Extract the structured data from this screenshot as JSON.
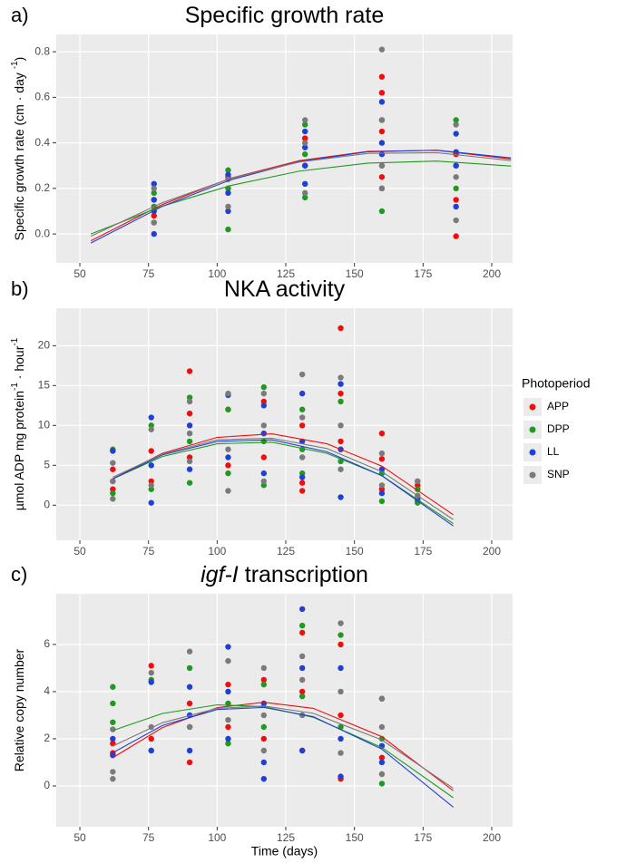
{
  "chart_data": [
    {
      "type": "scatter",
      "label": "a)",
      "title": "Specific growth rate",
      "ylabel": [
        "Specific growth rate (cm · day ",
        "-1",
        ")"
      ],
      "xlim": [
        41.4,
        207.6
      ],
      "ylim": [
        -0.127,
        0.876
      ],
      "xticks": [
        50,
        75,
        100,
        125,
        150,
        175,
        200
      ],
      "yticks": [
        {
          "value": 0,
          "label": "0.0"
        },
        0.2,
        0.4,
        0.6,
        0.8
      ],
      "grid": true,
      "series": [
        {
          "name": "APP",
          "color": "#f20d0d",
          "x": [
            77,
            77,
            104,
            104,
            132,
            132,
            160,
            160,
            160,
            160,
            187,
            187,
            187
          ],
          "values": [
            0.08,
            0.15,
            0.2,
            0.25,
            0.3,
            0.42,
            0.69,
            0.62,
            0.45,
            0.25,
            -0.01,
            0.15,
            0.35
          ],
          "trend": {
            "x": [
              54,
              80,
              105,
              130,
              155,
              180,
              207
            ],
            "values": [
              -0.03,
              0.129,
              0.245,
              0.322,
              0.363,
              0.367,
              0.329
            ]
          }
        },
        {
          "name": "DPP",
          "color": "#1e9a1e",
          "x": [
            77,
            77,
            77,
            104,
            104,
            104,
            132,
            132,
            132,
            160,
            160,
            160,
            187,
            187,
            187
          ],
          "values": [
            0.05,
            0.18,
            0.12,
            0.02,
            0.28,
            0.2,
            0.16,
            0.48,
            0.35,
            0.1,
            0.5,
            0.3,
            0.5,
            0.2,
            0.3
          ],
          "trend": {
            "x": [
              54,
              80,
              105,
              130,
              155,
              180,
              207
            ],
            "values": [
              0,
              0.122,
              0.213,
              0.276,
              0.311,
              0.32,
              0.298
            ]
          }
        },
        {
          "name": "LL",
          "color": "#1f3fd6",
          "x": [
            77,
            77,
            77,
            77,
            104,
            104,
            104,
            132,
            132,
            132,
            132,
            160,
            160,
            160,
            160,
            187,
            187,
            187,
            187
          ],
          "values": [
            0,
            0.22,
            0.1,
            0.15,
            0.1,
            0.26,
            0.18,
            0.22,
            0.45,
            0.3,
            0.38,
            0.2,
            0.58,
            0.4,
            0.35,
            0.12,
            0.44,
            0.3,
            0.36
          ],
          "trend": {
            "x": [
              54,
              80,
              105,
              130,
              155,
              180,
              207
            ],
            "values": [
              -0.04,
              0.121,
              0.238,
              0.318,
              0.361,
              0.368,
              0.334
            ]
          }
        },
        {
          "name": "SNP",
          "color": "#7a7a7a",
          "x": [
            77,
            77,
            104,
            104,
            132,
            132,
            132,
            160,
            160,
            160,
            160,
            187,
            187,
            187
          ],
          "values": [
            0.05,
            0.2,
            0.12,
            0.24,
            0.18,
            0.5,
            0.4,
            0.81,
            0.2,
            0.5,
            0.3,
            0.06,
            0.48,
            0.25
          ],
          "trend": {
            "x": [
              54,
              80,
              105,
              130,
              155,
              180,
              207
            ],
            "values": [
              -0.01,
              0.137,
              0.244,
              0.316,
              0.354,
              0.357,
              0.322
            ]
          }
        }
      ]
    },
    {
      "type": "scatter",
      "label": "b)",
      "title": "NKA activity",
      "ylabel": [
        "µmol ADP  mg protein",
        "-1",
        " · hour",
        "-1"
      ],
      "xlim": [
        41.4,
        207.6
      ],
      "ylim": [
        -4.4,
        24.7
      ],
      "xticks": [
        50,
        75,
        100,
        125,
        150,
        175,
        200
      ],
      "yticks": [
        0,
        5,
        10,
        15,
        20
      ],
      "grid": true,
      "series": [
        {
          "name": "APP",
          "color": "#f20d0d",
          "x": [
            62,
            62,
            76,
            76,
            90,
            90,
            90,
            104,
            104,
            117,
            117,
            131,
            131,
            131,
            145,
            145,
            145,
            160,
            160,
            160,
            173,
            173
          ],
          "values": [
            4.5,
            2,
            6.8,
            3,
            16.8,
            11.5,
            6,
            12,
            5,
            13,
            6,
            2.8,
            1.8,
            10,
            22.2,
            14,
            8,
            9,
            5.8,
            2,
            2.5,
            0.5
          ],
          "trend": {
            "x": [
              62,
              80,
              100,
              120,
              140,
              160,
              186
            ],
            "values": [
              3.3,
              6.5,
              8.5,
              8.95,
              7.7,
              4.9,
              -1.2
            ]
          }
        },
        {
          "name": "DPP",
          "color": "#1e9a1e",
          "x": [
            62,
            62,
            76,
            76,
            90,
            90,
            90,
            104,
            104,
            117,
            117,
            117,
            131,
            131,
            131,
            145,
            145,
            160,
            160,
            173,
            173
          ],
          "values": [
            7,
            1.5,
            10,
            2,
            13.5,
            2.8,
            8,
            12,
            4,
            14.8,
            2.5,
            8,
            12,
            4,
            7,
            13,
            5.5,
            4,
            0.5,
            2,
            0.3
          ],
          "trend": {
            "x": [
              62,
              80,
              100,
              120,
              140,
              160,
              186
            ],
            "values": [
              3.3,
              6.1,
              7.7,
              7.9,
              6.5,
              3.7,
              -2.3
            ]
          }
        },
        {
          "name": "LL",
          "color": "#1f3fd6",
          "x": [
            62,
            62,
            76,
            76,
            76,
            90,
            90,
            104,
            104,
            117,
            117,
            117,
            131,
            131,
            131,
            145,
            145,
            145,
            160,
            160,
            173,
            173
          ],
          "values": [
            6.8,
            3,
            11,
            0.3,
            5,
            10,
            4.5,
            13.8,
            6,
            12.5,
            4,
            9,
            14,
            3.5,
            8,
            15.2,
            1,
            7,
            4.5,
            1.5,
            3,
            0.8
          ],
          "trend": {
            "x": [
              62,
              80,
              100,
              120,
              140,
              160,
              186
            ],
            "values": [
              3.3,
              6.3,
              8,
              8.2,
              6.7,
              3.7,
              -2.6
            ]
          }
        },
        {
          "name": "SNP",
          "color": "#7a7a7a",
          "x": [
            62,
            62,
            62,
            76,
            76,
            90,
            90,
            90,
            104,
            104,
            104,
            117,
            117,
            117,
            131,
            131,
            131,
            145,
            145,
            145,
            160,
            160,
            173,
            173
          ],
          "values": [
            5.3,
            0.8,
            3,
            9.5,
            2.5,
            13,
            5.5,
            9,
            14,
            1.8,
            7,
            14,
            3,
            10,
            16.4,
            6,
            11,
            16,
            4.5,
            10,
            6.5,
            2.5,
            3,
            1.2
          ],
          "trend": {
            "x": [
              62,
              80,
              100,
              120,
              140,
              160,
              186
            ],
            "values": [
              3.5,
              6.4,
              8.2,
              8.4,
              7.1,
              4.2,
              -1.8
            ]
          }
        }
      ]
    },
    {
      "type": "scatter",
      "label": "c)",
      "title_italic": "igf-I",
      "title": "transcription",
      "ylabel": [
        "Relative copy number"
      ],
      "xlabel": "Time (days)",
      "xlim": [
        41.4,
        207.6
      ],
      "ylim": [
        -1.73,
        8.15
      ],
      "xticks": [
        50,
        75,
        100,
        125,
        150,
        175,
        200
      ],
      "yticks": [
        0,
        2,
        4,
        6
      ],
      "grid": true,
      "series": [
        {
          "name": "APP",
          "color": "#f20d0d",
          "x": [
            62,
            62,
            76,
            76,
            90,
            90,
            104,
            104,
            117,
            117,
            131,
            131,
            131,
            145,
            145,
            145,
            160,
            160
          ],
          "values": [
            1.8,
            1.4,
            5.1,
            2,
            1.0,
            3.5,
            4.3,
            2.5,
            4.5,
            2,
            6.5,
            1.5,
            4,
            6.0,
            0.3,
            3,
            3.7,
            1.2
          ],
          "trend": {
            "x": [
              62,
              80,
              100,
              117,
              135,
              160,
              186
            ],
            "values": [
              1.2,
              2.47,
              3.32,
              3.55,
              3.29,
              2.09,
              -0.2
            ]
          }
        },
        {
          "name": "DPP",
          "color": "#1e9a1e",
          "x": [
            62,
            62,
            62,
            76,
            76,
            90,
            90,
            104,
            104,
            117,
            117,
            131,
            131,
            145,
            145,
            160,
            160
          ],
          "values": [
            4.2,
            3.5,
            2.7,
            4.5,
            1.5,
            5.0,
            2.5,
            1.8,
            3.5,
            4.3,
            2.5,
            6.8,
            3.8,
            6.4,
            2.5,
            0.1,
            2
          ],
          "trend": {
            "x": [
              62,
              80,
              100,
              117,
              135,
              160,
              186
            ],
            "values": [
              2.35,
              3.07,
              3.44,
              3.36,
              2.91,
              1.63,
              -0.5
            ]
          }
        },
        {
          "name": "LL",
          "color": "#1f3fd6",
          "x": [
            62,
            62,
            76,
            76,
            90,
            90,
            90,
            104,
            104,
            104,
            117,
            117,
            117,
            131,
            131,
            131,
            145,
            145,
            145,
            160,
            160
          ],
          "values": [
            1.3,
            2,
            4.4,
            1.5,
            4.2,
            1.5,
            3,
            5.9,
            2,
            4,
            0.3,
            1,
            3.5,
            7.5,
            1.5,
            5,
            5.0,
            0.4,
            2,
            1.0,
            1.7
          ],
          "trend": {
            "x": [
              62,
              80,
              100,
              117,
              135,
              160,
              186
            ],
            "values": [
              1.41,
              2.56,
              3.24,
              3.33,
              2.94,
              1.56,
              -0.9
            ]
          }
        },
        {
          "name": "SNP",
          "color": "#7a7a7a",
          "x": [
            62,
            62,
            62,
            76,
            76,
            90,
            90,
            104,
            104,
            117,
            117,
            117,
            131,
            131,
            131,
            145,
            145,
            145,
            160,
            160,
            160
          ],
          "values": [
            0.3,
            0.6,
            2.4,
            4.8,
            2.5,
            5.7,
            2.5,
            5.3,
            2.8,
            5.0,
            1.5,
            3,
            5.5,
            3,
            4.5,
            6.9,
            1.4,
            4,
            0.5,
            3.7,
            2.5
          ],
          "trend": {
            "x": [
              62,
              80,
              100,
              117,
              135,
              160,
              186
            ],
            "values": [
              1.69,
              2.68,
              3.29,
              3.39,
              3.08,
              1.95,
              -0.1
            ]
          }
        }
      ]
    }
  ],
  "legend": {
    "title": "Photoperiod",
    "position": "right"
  }
}
